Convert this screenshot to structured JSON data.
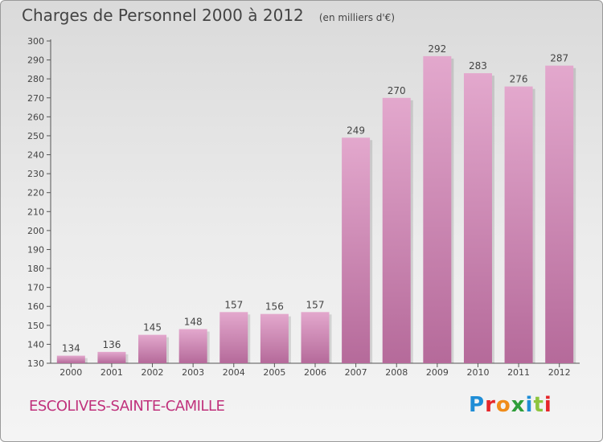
{
  "header": {
    "title": "Charges de Personnel 2000 à 2012",
    "subtitle": "(en milliers d'€)"
  },
  "footer": {
    "city": "ESCOLIVES-SAINTE-CAMILLE"
  },
  "logo": {
    "text": "Proxiti",
    "colors": [
      "#1f8dd6",
      "#e6262a",
      "#f08c1a",
      "#2f9e3a",
      "#1f8dd6",
      "#8dc43e",
      "#e6262a"
    ]
  },
  "colors": {
    "bar_light": "#e3a8cd",
    "bar_dark": "#b56a9a",
    "text": "#444444",
    "city": "#c0327c"
  },
  "chart_data": {
    "type": "bar",
    "title": "Charges de Personnel 2000 à 2012",
    "subtitle": "(en milliers d'€)",
    "categories": [
      "2000",
      "2001",
      "2002",
      "2003",
      "2004",
      "2005",
      "2006",
      "2007",
      "2008",
      "2009",
      "2010",
      "2011",
      "2012"
    ],
    "values": [
      134,
      136,
      145,
      148,
      157,
      156,
      157,
      249,
      270,
      292,
      283,
      276,
      287
    ],
    "ylim": [
      130,
      300
    ],
    "yticks": [
      130,
      140,
      150,
      160,
      170,
      180,
      190,
      200,
      210,
      220,
      230,
      240,
      250,
      260,
      270,
      280,
      290,
      300
    ],
    "grid": false,
    "data_labels": true
  }
}
